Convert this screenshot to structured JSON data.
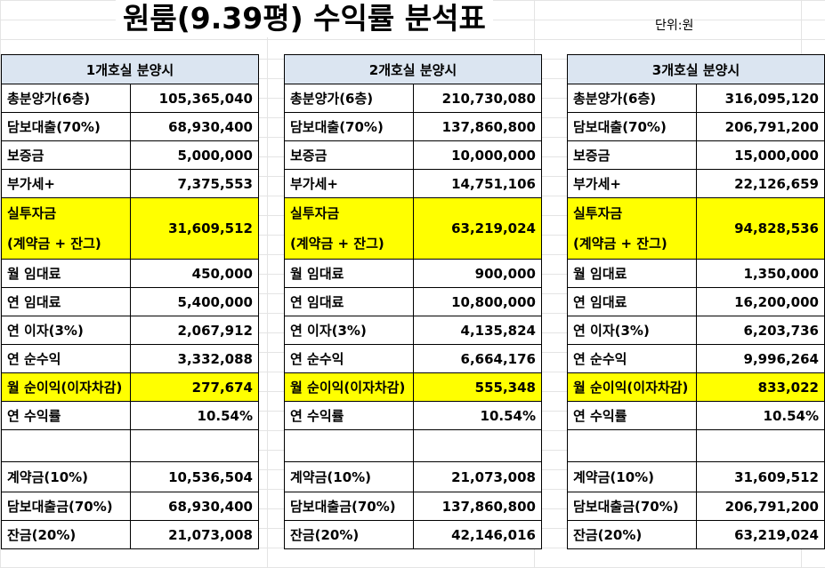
{
  "title": "원룸(9.39평) 수익률 분석표",
  "unit": "단위:원",
  "panels": [
    {
      "header": "1개호실 분양시",
      "rows": [
        {
          "label": "총분양가(6층)",
          "value": "105,365,040"
        },
        {
          "label": "담보대출(70%)",
          "value": "68,930,400"
        },
        {
          "label": "보증금",
          "value": "5,000,000"
        },
        {
          "label": "부가세+",
          "value": "7,375,553"
        },
        {
          "label": "실투자금",
          "label2": "(계약금 + 잔그)",
          "value": "31,609,512"
        },
        {
          "label": "월 임대료",
          "value": "450,000"
        },
        {
          "label": "연 임대료",
          "value": "5,400,000"
        },
        {
          "label": "연 이자(3%)",
          "value": "2,067,912"
        },
        {
          "label": "연 순수익",
          "value": "3,332,088"
        },
        {
          "label": "월 순이익(이자차감)",
          "value": "277,674"
        },
        {
          "label": "연 수익률",
          "value": "10.54%"
        },
        {
          "label": "계약금(10%)",
          "value": "10,536,504"
        },
        {
          "label": "담보대출금(70%)",
          "value": "68,930,400"
        },
        {
          "label": "잔금(20%)",
          "value": "21,073,008"
        }
      ]
    },
    {
      "header": "2개호실 분양시",
      "rows": [
        {
          "label": "총분양가(6층)",
          "value": "210,730,080"
        },
        {
          "label": "담보대출(70%)",
          "value": "137,860,800"
        },
        {
          "label": "보증금",
          "value": "10,000,000"
        },
        {
          "label": "부가세+",
          "value": "14,751,106"
        },
        {
          "label": "실투자금",
          "label2": "(계약금 + 잔그)",
          "value": "63,219,024"
        },
        {
          "label": "월 임대료",
          "value": "900,000"
        },
        {
          "label": "연 임대료",
          "value": "10,800,000"
        },
        {
          "label": "연 이자(3%)",
          "value": "4,135,824"
        },
        {
          "label": "연 순수익",
          "value": "6,664,176"
        },
        {
          "label": "월 순이익(이자차감)",
          "value": "555,348"
        },
        {
          "label": "연 수익률",
          "value": "10.54%"
        },
        {
          "label": "계약금(10%)",
          "value": "21,073,008"
        },
        {
          "label": "담보대출금(70%)",
          "value": "137,860,800"
        },
        {
          "label": "잔금(20%)",
          "value": "42,146,016"
        }
      ]
    },
    {
      "header": "3개호실 분양시",
      "rows": [
        {
          "label": "총분양가(6층)",
          "value": "316,095,120"
        },
        {
          "label": "담보대출(70%)",
          "value": "206,791,200"
        },
        {
          "label": "보증금",
          "value": "15,000,000"
        },
        {
          "label": "부가세+",
          "value": "22,126,659"
        },
        {
          "label": "실투자금",
          "label2": "(계약금 + 잔그)",
          "value": "94,828,536"
        },
        {
          "label": "월 임대료",
          "value": "1,350,000"
        },
        {
          "label": "연 임대료",
          "value": "16,200,000"
        },
        {
          "label": "연 이자(3%)",
          "value": "6,203,736"
        },
        {
          "label": "연 순수익",
          "value": "9,996,264"
        },
        {
          "label": "월 순이익(이자차감)",
          "value": "833,022"
        },
        {
          "label": "연 수익률",
          "value": "10.54%"
        },
        {
          "label": "계약금(10%)",
          "value": "31,609,512"
        },
        {
          "label": "담보대출금(70%)",
          "value": "206,791,200"
        },
        {
          "label": "잔금(20%)",
          "value": "63,219,024"
        }
      ]
    }
  ]
}
